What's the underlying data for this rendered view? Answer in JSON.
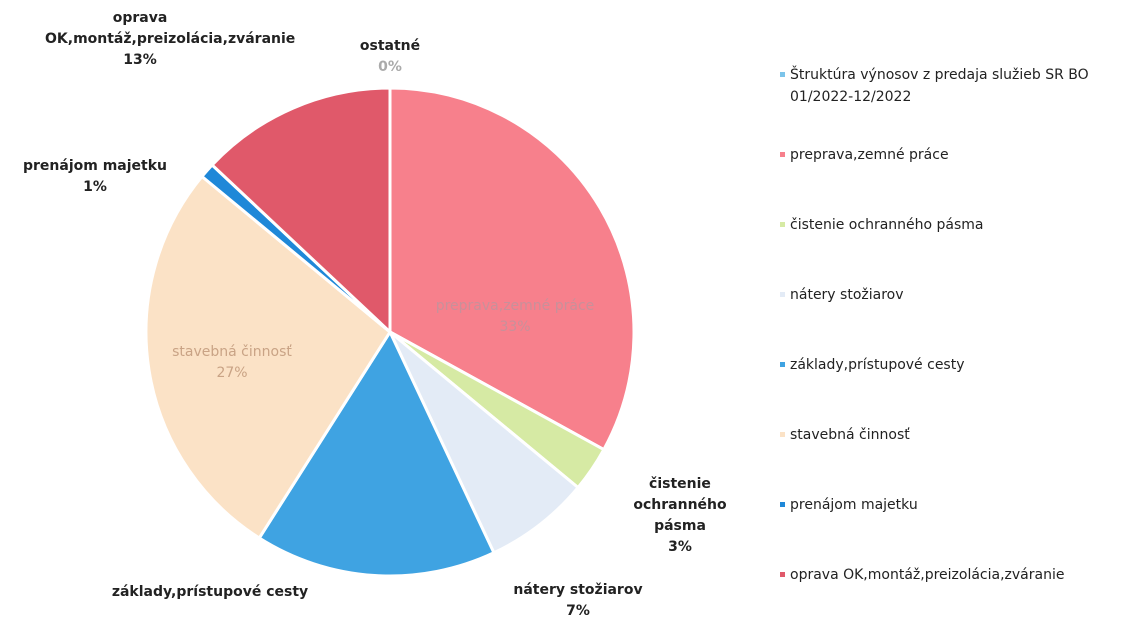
{
  "chart_data": {
    "type": "pie",
    "series_name": "Štruktúra výnosov z  predaja služieb SR BO 01/2022-12/2022",
    "series_color": "#7cc4ea",
    "categories": [
      "preprava,zemné práce",
      "čistenie ochranného pásma",
      "nátery stožiarov",
      "základy,prístupové cesty",
      "stavebná činnosť",
      "prenájom majetku",
      "oprava OK,montáž,preizolácia,zváranie",
      "ostatné"
    ],
    "values": [
      33,
      3,
      7,
      16,
      27,
      1,
      13,
      0
    ],
    "value_labels": [
      "33%",
      "3%",
      "7%",
      null,
      "27%",
      "1%",
      "13%",
      "0%"
    ],
    "colors": [
      "#f7808c",
      "#d6eaa4",
      "#e3ebf6",
      "#3fa3e2",
      "#fbe2c6",
      "#1f88d8",
      "#e0596a",
      "#f0f0f0"
    ],
    "in_legend": [
      true,
      true,
      true,
      true,
      true,
      true,
      true,
      false
    ]
  }
}
